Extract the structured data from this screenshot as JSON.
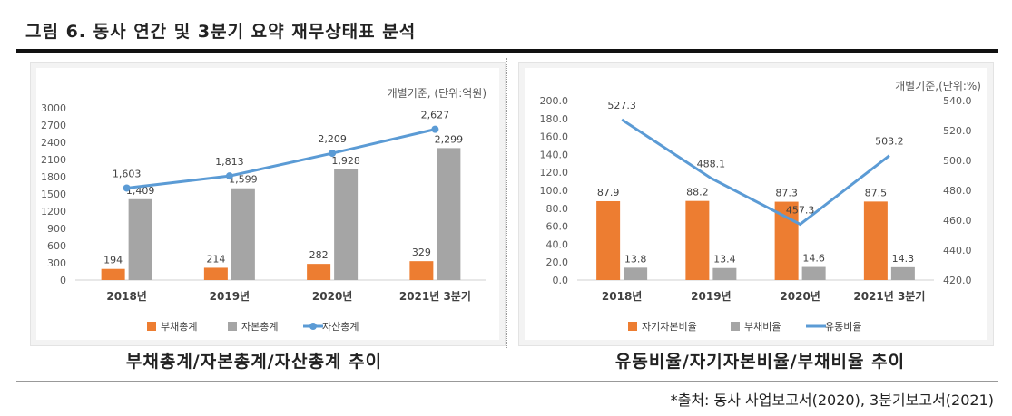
{
  "figure_title": "그림 6. 동사 연간 및 3분기 요약 재무상태표 분석",
  "captions": [
    "부채총계/자본총계/자산총계 추이",
    "유동비율/자기자본비율/부채비율 추이"
  ],
  "source": "*출처: 동사 사업보고서(2020), 3분기보고서(2021)",
  "chart_data": [
    {
      "type": "bar",
      "unit_note": "개별기준, (단위:억원)",
      "categories": [
        "2018년",
        "2019년",
        "2020년",
        "2021년 3분기"
      ],
      "ylim": [
        0,
        3000
      ],
      "yticks": [
        "3000",
        "2700",
        "2400",
        "2100",
        "1800",
        "1500",
        "1200",
        "900",
        "600",
        "300",
        "0"
      ],
      "series": [
        {
          "name": "부채총계",
          "kind": "bar",
          "axis": "left",
          "color": "#ED7D31",
          "values": [
            194,
            214,
            282,
            329
          ],
          "labels": [
            "194",
            "214",
            "282",
            "329"
          ]
        },
        {
          "name": "자본총계",
          "kind": "bar",
          "axis": "left",
          "color": "#A5A5A5",
          "values": [
            1409,
            1599,
            1928,
            2299
          ],
          "labels": [
            "1,409",
            "1,599",
            "1,928",
            "2,299"
          ]
        },
        {
          "name": "자산총계",
          "kind": "line",
          "axis": "left",
          "color": "#5B9BD5",
          "values": [
            1603,
            1813,
            2209,
            2627
          ],
          "labels": [
            "1,603",
            "1,813",
            "2,209",
            "2,627"
          ]
        }
      ],
      "grid": false,
      "legend": "bottom"
    },
    {
      "type": "bar",
      "unit_note": "개별기준,(단위:%)",
      "categories": [
        "2018년",
        "2019년",
        "2020년",
        "2021년 3분기"
      ],
      "ylim": [
        0,
        200
      ],
      "y2lim": [
        420,
        540
      ],
      "yticks": [
        "200.0",
        "180.0",
        "160.0",
        "140.0",
        "120.0",
        "100.0",
        "80.0",
        "60.0",
        "40.0",
        "20.0",
        "0.0"
      ],
      "y2ticks": [
        "540.0",
        "520.0",
        "500.0",
        "480.0",
        "460.0",
        "440.0",
        "420.0"
      ],
      "series": [
        {
          "name": "자기자본비율",
          "kind": "bar",
          "axis": "left",
          "color": "#ED7D31",
          "values": [
            87.9,
            88.2,
            87.3,
            87.5
          ],
          "labels": [
            "87.9",
            "88.2",
            "87.3",
            "87.5"
          ]
        },
        {
          "name": "부채비율",
          "kind": "bar",
          "axis": "left",
          "color": "#A5A5A5",
          "values": [
            13.8,
            13.4,
            14.6,
            14.3
          ],
          "labels": [
            "13.8",
            "13.4",
            "14.6",
            "14.3"
          ]
        },
        {
          "name": "유동비율",
          "kind": "line",
          "axis": "right",
          "color": "#5B9BD5",
          "values": [
            527.3,
            488.1,
            457.3,
            503.2
          ],
          "labels": [
            "527.3",
            "488.1",
            "457.3",
            "503.2"
          ]
        }
      ],
      "grid": false,
      "legend": "bottom"
    }
  ]
}
